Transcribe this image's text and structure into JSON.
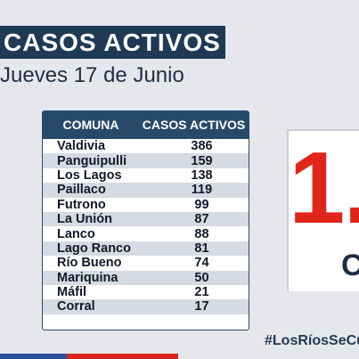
{
  "header": {
    "title": "CASOS ACTIVOS",
    "date": "Jueves 17 de Junio"
  },
  "table": {
    "columns": [
      "COMUNA",
      "CASOS ACTIVOS"
    ],
    "rows": [
      {
        "comuna": "Valdivia",
        "casos": "386"
      },
      {
        "comuna": "Panguipulli",
        "casos": "159"
      },
      {
        "comuna": "Los Lagos",
        "casos": "138"
      },
      {
        "comuna": "Paillaco",
        "casos": "119"
      },
      {
        "comuna": "Futrono",
        "casos": "99"
      },
      {
        "comuna": "La Unión",
        "casos": "87"
      },
      {
        "comuna": "Lanco",
        "casos": "88"
      },
      {
        "comuna": "Lago Ranco",
        "casos": "81"
      },
      {
        "comuna": "Río Bueno",
        "casos": "74"
      },
      {
        "comuna": "Mariquina",
        "casos": "50"
      },
      {
        "comuna": "Máfil",
        "casos": "21"
      },
      {
        "comuna": "Corral",
        "casos": "17"
      }
    ]
  },
  "summary": {
    "big_number": "1.",
    "big_letter": "C"
  },
  "footer": {
    "hashtag": "#LosRíosSeCu"
  },
  "colors": {
    "primary": "#274a6b",
    "accent": "#e0261a",
    "stripe_blue": "#2a4d9c",
    "stripe_red": "#d6251b"
  }
}
